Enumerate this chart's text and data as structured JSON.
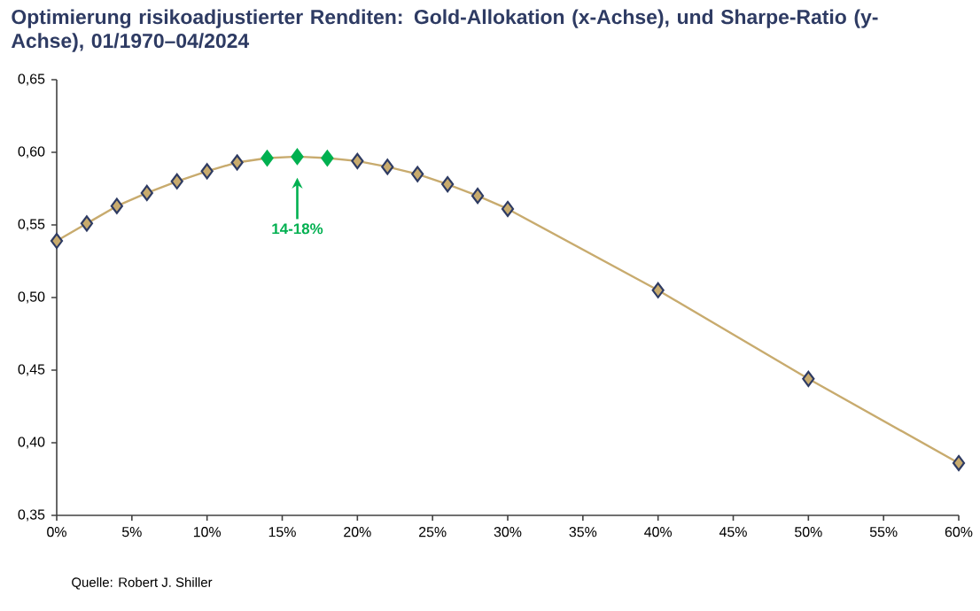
{
  "chart_data": {
    "type": "line",
    "title": "Optimierung risikoadjustierter Renditen: Gold-Allokation (x-Achse), und Sharpe-Ratio (y-Achse), 01/1970–04/2024",
    "x": [
      0,
      2,
      4,
      6,
      8,
      10,
      12,
      14,
      16,
      18,
      20,
      22,
      24,
      26,
      28,
      30,
      40,
      50,
      60
    ],
    "series": [
      {
        "color": "#c8ab6e",
        "marker": "diamond",
        "values": [
          0.539,
          0.551,
          0.563,
          0.572,
          0.58,
          0.587,
          0.593,
          0.596,
          0.597,
          0.596,
          0.594,
          0.59,
          0.585,
          0.578,
          0.57,
          0.561,
          0.505,
          0.444,
          0.386
        ],
        "colors": [
          "#c8ab6e",
          "#c8ab6e",
          "#c8ab6e",
          "#c8ab6e",
          "#c8ab6e",
          "#c8ab6e",
          "#c8ab6e",
          "#00b050",
          "#00b050",
          "#00b050",
          "#c8ab6e",
          "#c8ab6e",
          "#c8ab6e",
          "#c8ab6e",
          "#c8ab6e",
          "#c8ab6e",
          "#c8ab6e",
          "#c8ab6e",
          "#c8ab6e"
        ]
      }
    ],
    "xlim": [
      0,
      60
    ],
    "xticks": [
      {
        "value": 0,
        "label": "0%"
      },
      {
        "value": 5,
        "label": "5%"
      },
      {
        "value": 10,
        "label": "10%"
      },
      {
        "value": 15,
        "label": "15%"
      },
      {
        "value": 20,
        "label": "20%"
      },
      {
        "value": 25,
        "label": "25%"
      },
      {
        "value": 30,
        "label": "30%"
      },
      {
        "value": 35,
        "label": "35%"
      },
      {
        "value": 40,
        "label": "40%"
      },
      {
        "value": 45,
        "label": "45%"
      },
      {
        "value": 50,
        "label": "50%"
      },
      {
        "value": 55,
        "label": "55%"
      },
      {
        "value": 60,
        "label": "60%"
      }
    ],
    "ylim": [
      0.35,
      0.65
    ],
    "yticks": [
      {
        "value": 0.35,
        "label": "0,35"
      },
      {
        "value": 0.4,
        "label": "0,40"
      },
      {
        "value": 0.45,
        "label": "0,45"
      },
      {
        "value": 0.5,
        "label": "0,50"
      },
      {
        "value": 0.55,
        "label": "0,55"
      },
      {
        "value": 0.6,
        "label": "0,60"
      },
      {
        "value": 0.65,
        "label": "0,65"
      }
    ],
    "grid": false,
    "annotations": [
      "14-18%",
      "Quelle: Robert J. Shiller"
    ]
  }
}
